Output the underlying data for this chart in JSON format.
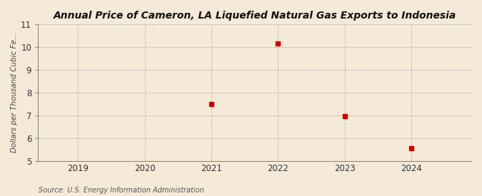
{
  "title": "Annual Price of Cameron, LA Liquefied Natural Gas Exports to Indonesia",
  "title_prefix": "Annual ",
  "ylabel": "Dollars per Thousand Cubic Fe...",
  "source": "Source: U.S. Energy Information Administration",
  "x_values": [
    2021,
    2022,
    2023,
    2024
  ],
  "y_values": [
    7.5,
    10.17,
    6.97,
    5.55
  ],
  "xlim": [
    2018.4,
    2024.9
  ],
  "ylim": [
    5,
    11
  ],
  "yticks": [
    5,
    6,
    7,
    8,
    9,
    10,
    11
  ],
  "xticks": [
    2019,
    2020,
    2021,
    2022,
    2023,
    2024
  ],
  "background_color": "#f5ead8",
  "plot_background_color": "#f5ead8",
  "grid_color": "#bbbbbb",
  "marker_color": "#cc0000",
  "marker_size": 4,
  "title_fontsize": 10,
  "label_fontsize": 7.5,
  "tick_fontsize": 8.5,
  "source_fontsize": 7
}
